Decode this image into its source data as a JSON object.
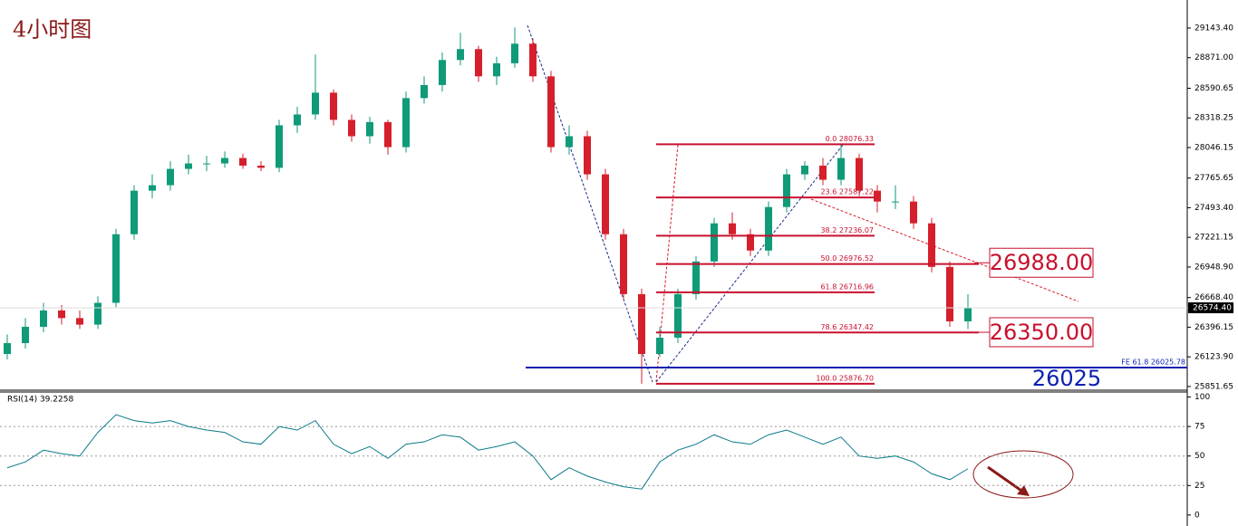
{
  "title": "4小时图",
  "chart_data": [
    {
      "type": "candlestick",
      "open": [
        26150,
        26250,
        26400,
        26550,
        26480,
        26420,
        26620,
        27250,
        27650,
        27700,
        27850,
        27900,
        27900,
        27950,
        27880,
        27860,
        28250,
        28350,
        28550,
        28300,
        28150,
        28280,
        28050,
        28500,
        28620,
        28850,
        28950,
        28700,
        28820,
        29000,
        28700,
        28050,
        28150,
        27800,
        27250,
        26700,
        26150,
        26300,
        26700,
        27000,
        27350,
        27250,
        27100,
        27500,
        27800,
        27880,
        27750,
        27950,
        27650,
        27550,
        27550,
        27350,
        26950,
        26450
      ],
      "high": [
        26330,
        26480,
        26620,
        26600,
        26550,
        26680,
        27300,
        27700,
        27800,
        27920,
        27980,
        27970,
        28010,
        27990,
        27920,
        28300,
        28420,
        28900,
        28580,
        28350,
        28330,
        28300,
        28560,
        28700,
        28920,
        29100,
        28980,
        28880,
        29150,
        29050,
        28750,
        28250,
        28200,
        27850,
        27300,
        26750,
        26400,
        26750,
        27050,
        27400,
        27450,
        27300,
        27550,
        27850,
        27920,
        27950,
        28076.33,
        27990,
        27700,
        27700,
        27600,
        27400,
        27000,
        26700
      ],
      "low": [
        26100,
        26200,
        26350,
        26420,
        26380,
        26380,
        26580,
        27200,
        27580,
        27650,
        27800,
        27830,
        27860,
        27850,
        27830,
        27820,
        28180,
        28300,
        28250,
        28100,
        28080,
        27980,
        28000,
        28450,
        28560,
        28800,
        28650,
        28620,
        28780,
        28650,
        28000,
        27980,
        27750,
        27200,
        26650,
        25876.7,
        26120,
        26250,
        26650,
        26950,
        27200,
        27050,
        27050,
        27450,
        27750,
        27700,
        27700,
        27600,
        27450,
        27480,
        27300,
        26900,
        26400,
        26380
      ],
      "close": [
        26250,
        26400,
        26550,
        26480,
        26420,
        26620,
        27250,
        27650,
        27700,
        27850,
        27900,
        27900,
        27950,
        27880,
        27860,
        28250,
        28350,
        28550,
        28300,
        28150,
        28280,
        28050,
        28500,
        28620,
        28850,
        28950,
        28700,
        28820,
        29000,
        28700,
        28050,
        28150,
        27800,
        27250,
        26700,
        26150,
        26300,
        26700,
        27000,
        27350,
        27250,
        27100,
        27500,
        27800,
        27880,
        27750,
        27950,
        27650,
        27550,
        27550,
        27350,
        26950,
        26450,
        26574.4
      ],
      "up_color": "#0f9a78",
      "down_color": "#d61f2c",
      "ylim": [
        25826,
        29401
      ],
      "yticks": [
        {
          "value": 29143.4,
          "label": "29143.40"
        },
        {
          "value": 28871,
          "label": "28871.00"
        },
        {
          "value": 28590.65,
          "label": "28590.65"
        },
        {
          "value": 28318.25,
          "label": "28318.25"
        },
        {
          "value": 28046.15,
          "label": "28046.15"
        },
        {
          "value": 27765.65,
          "label": "27765.65"
        },
        {
          "value": 27493.4,
          "label": "27493.40"
        },
        {
          "value": 27221.15,
          "label": "27221.15"
        },
        {
          "value": 26948.9,
          "label": "26948.90"
        },
        {
          "value": 26668.4,
          "label": "26668.40"
        },
        {
          "value": 26396.15,
          "label": "26396.15"
        },
        {
          "value": 26123.9,
          "label": "26123.90"
        },
        {
          "value": 25851.65,
          "label": "25851.65"
        }
      ],
      "last_price": {
        "value": 26574.4,
        "label": "26574.40"
      },
      "fib_levels": [
        {
          "value": 28076.33,
          "label": "0.0  28076.33"
        },
        {
          "value": 27587.22,
          "label": "23.6  27587.22"
        },
        {
          "value": 27236.07,
          "label": "38.2  27236.07"
        },
        {
          "value": 26976.52,
          "label": "50.0  26976.52"
        },
        {
          "value": 26716.96,
          "label": "61.8  26716.96"
        },
        {
          "value": 26347.42,
          "label": "78.6  26347.42"
        },
        {
          "value": 25876.7,
          "label": "100.0  25876.70"
        }
      ],
      "markers": [
        {
          "value": 26988,
          "label": "26988.00"
        },
        {
          "value": 26350,
          "label": "26350.00"
        }
      ],
      "fe_level": {
        "value": 26025.78,
        "label": "FE 61.8  26025.78"
      },
      "fe_marker": 26025
    },
    {
      "type": "line",
      "title": "RSI(14) 39.2258",
      "color": "#0b7a8a",
      "values": [
        40,
        45,
        55,
        52,
        50,
        70,
        85,
        80,
        78,
        80,
        75,
        72,
        70,
        62,
        60,
        75,
        72,
        80,
        60,
        52,
        58,
        48,
        60,
        62,
        68,
        66,
        55,
        58,
        62,
        50,
        30,
        40,
        33,
        28,
        24,
        22,
        45,
        55,
        60,
        68,
        62,
        60,
        68,
        72,
        66,
        60,
        66,
        50,
        48,
        50,
        45,
        35,
        30,
        39.2258
      ],
      "ylim": [
        -7,
        105
      ],
      "yticks": [
        0,
        25,
        50,
        75,
        100
      ]
    }
  ]
}
